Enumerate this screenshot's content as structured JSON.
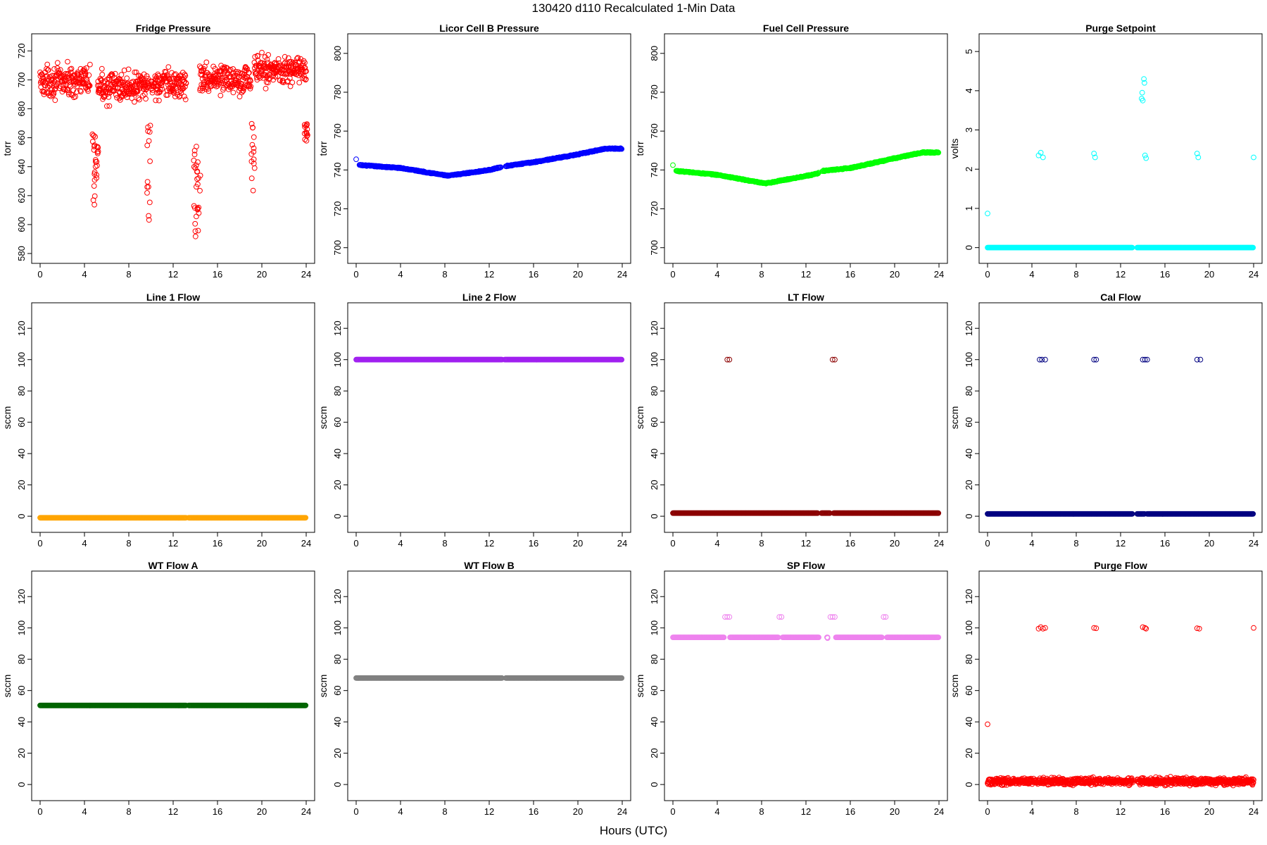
{
  "figure": {
    "title": "130420   d110   Recalculated 1-Min Data",
    "xlabel": "Hours (UTC)"
  },
  "chart_data": [
    {
      "type": "scatter",
      "title": "Fridge Pressure",
      "ylabel": "torr",
      "color": "#ff0000",
      "xlim": [
        0,
        24
      ],
      "ylim": [
        580,
        725
      ],
      "xticks": [
        "0",
        "4",
        "8",
        "12",
        "16",
        "20",
        "24"
      ],
      "yticks": [
        "580",
        "600",
        "620",
        "640",
        "660",
        "680",
        "700",
        "720"
      ],
      "series": [
        {
          "name": "main",
          "x_range": [
            0,
            24
          ],
          "y": 699,
          "spread": 7,
          "gaps": [
            [
              13.2,
              14.3
            ]
          ],
          "segment_levels": [
            [
              0,
              4.5,
              699
            ],
            [
              5.2,
              9.8,
              695
            ],
            [
              10,
              13.2,
              697
            ],
            [
              14.4,
              19,
              701
            ],
            [
              19.3,
              24,
              707
            ]
          ]
        },
        {
          "name": "dips",
          "clusters": [
            [
              4.8,
              612,
              663
            ],
            [
              5.1,
              630,
              663
            ],
            [
              9.8,
              603,
              671
            ],
            [
              14,
              585,
              656
            ],
            [
              14.3,
              595,
              645
            ],
            [
              19.2,
              620,
              670
            ],
            [
              24,
              657,
              670
            ]
          ]
        }
      ]
    },
    {
      "type": "scatter",
      "title": "Licor Cell B Pressure",
      "ylabel": "torr",
      "color": "#0000ff",
      "xlim": [
        0,
        24
      ],
      "ylim": [
        697,
        805
      ],
      "xticks": [
        "0",
        "4",
        "8",
        "12",
        "16",
        "20",
        "24"
      ],
      "yticks": [
        "700",
        "720",
        "740",
        "760",
        "780",
        "800"
      ],
      "series": [
        {
          "name": "main",
          "points": [
            [
              0,
              745.5
            ]
          ],
          "line": [
            [
              0.3,
              742.5
            ],
            [
              4,
              741
            ],
            [
              8.3,
              737
            ],
            [
              12,
              740
            ],
            [
              13.5,
              742
            ],
            [
              16,
              744
            ],
            [
              20,
              748
            ],
            [
              22.5,
              751
            ],
            [
              24,
              751
            ]
          ],
          "gaps": [
            [
              13.1,
              13.5
            ]
          ]
        }
      ]
    },
    {
      "type": "scatter",
      "title": "Fuel Cell Pressure",
      "ylabel": "torr",
      "color": "#00ff00",
      "xlim": [
        0,
        24
      ],
      "ylim": [
        697,
        805
      ],
      "xticks": [
        "0",
        "4",
        "8",
        "12",
        "16",
        "20",
        "24"
      ],
      "yticks": [
        "700",
        "720",
        "740",
        "760",
        "780",
        "800"
      ],
      "series": [
        {
          "name": "main",
          "points": [
            [
              0,
              742.5
            ]
          ],
          "line": [
            [
              0.3,
              739.5
            ],
            [
              4,
              737.5
            ],
            [
              8.3,
              733
            ],
            [
              13,
              738
            ],
            [
              13.5,
              739.5
            ],
            [
              16,
              741
            ],
            [
              20,
              746
            ],
            [
              22.5,
              749
            ],
            [
              24,
              749
            ]
          ],
          "gaps": [
            [
              13.2,
              13.5
            ]
          ]
        }
      ]
    },
    {
      "type": "scatter",
      "title": "Purge Setpoint",
      "ylabel": "volts",
      "color": "#00ffff",
      "xlim": [
        0,
        24
      ],
      "ylim": [
        -0.15,
        5.2
      ],
      "xticks": [
        "0",
        "4",
        "8",
        "12",
        "16",
        "20",
        "24"
      ],
      "yticks": [
        "0",
        "1",
        "2",
        "3",
        "4",
        "5"
      ],
      "series": [
        {
          "name": "baseline",
          "x_range": [
            0,
            24
          ],
          "y": 0,
          "gaps": [
            [
              13.1,
              13.5
            ]
          ]
        },
        {
          "name": "spikes",
          "points": [
            [
              0,
              0.87
            ],
            [
              4.6,
              2.35
            ],
            [
              4.8,
              2.42
            ],
            [
              5.0,
              2.3
            ],
            [
              9.6,
              2.4
            ],
            [
              9.7,
              2.3
            ],
            [
              13.9,
              3.8
            ],
            [
              13.95,
              3.95
            ],
            [
              14.0,
              3.75
            ],
            [
              14.1,
              4.3
            ],
            [
              14.15,
              4.2
            ],
            [
              14.2,
              2.35
            ],
            [
              14.3,
              2.28
            ],
            [
              18.9,
              2.4
            ],
            [
              19.0,
              2.3
            ],
            [
              24,
              2.3
            ]
          ]
        }
      ]
    },
    {
      "type": "scatter",
      "title": "Line 1 Flow",
      "ylabel": "sccm",
      "color": "#ffa500",
      "xlim": [
        0,
        24
      ],
      "ylim": [
        -4,
        130
      ],
      "xticks": [
        "0",
        "4",
        "8",
        "12",
        "16",
        "20",
        "24"
      ],
      "yticks": [
        "0",
        "20",
        "40",
        "60",
        "80",
        "100",
        "120"
      ],
      "series": [
        {
          "name": "main",
          "x_range": [
            0,
            24
          ],
          "y": -1,
          "gaps": [
            [
              13.2,
              13.4
            ]
          ]
        }
      ]
    },
    {
      "type": "scatter",
      "title": "Line 2 Flow",
      "ylabel": "sccm",
      "color": "#a020f0",
      "xlim": [
        0,
        24
      ],
      "ylim": [
        -4,
        130
      ],
      "xticks": [
        "0",
        "4",
        "8",
        "12",
        "16",
        "20",
        "24"
      ],
      "yticks": [
        "0",
        "20",
        "40",
        "60",
        "80",
        "100",
        "120"
      ],
      "series": [
        {
          "name": "main",
          "x_range": [
            0,
            24
          ],
          "y": 100,
          "gaps": [
            [
              13.2,
              13.4
            ]
          ]
        }
      ]
    },
    {
      "type": "scatter",
      "title": "LT Flow",
      "ylabel": "sccm",
      "color": "#8b0000",
      "xlim": [
        0,
        24
      ],
      "ylim": [
        -4,
        130
      ],
      "xticks": [
        "0",
        "4",
        "8",
        "12",
        "16",
        "20",
        "24"
      ],
      "yticks": [
        "0",
        "20",
        "40",
        "60",
        "80",
        "100",
        "120"
      ],
      "series": [
        {
          "name": "baseline",
          "x_range": [
            0,
            24
          ],
          "y": 2,
          "gaps": [
            [
              13.1,
              13.4
            ],
            [
              14.2,
              14.5
            ]
          ]
        },
        {
          "name": "spikes",
          "points": [
            [
              4.9,
              100
            ],
            [
              5.1,
              100
            ],
            [
              14.4,
              100
            ],
            [
              14.6,
              100
            ]
          ]
        }
      ]
    },
    {
      "type": "scatter",
      "title": "Cal Flow",
      "ylabel": "sccm",
      "color": "#000080",
      "xlim": [
        0,
        24
      ],
      "ylim": [
        -4,
        130
      ],
      "xticks": [
        "0",
        "4",
        "8",
        "12",
        "16",
        "20",
        "24"
      ],
      "yticks": [
        "0",
        "20",
        "40",
        "60",
        "80",
        "100",
        "120"
      ],
      "series": [
        {
          "name": "baseline",
          "x_range": [
            0,
            24
          ],
          "y": 1.5,
          "gaps": [
            [
              13.1,
              13.5
            ],
            [
              14.2,
              14.4
            ]
          ]
        },
        {
          "name": "spikes",
          "points": [
            [
              4.7,
              100
            ],
            [
              4.9,
              100
            ],
            [
              5.2,
              100
            ],
            [
              9.6,
              100
            ],
            [
              9.8,
              100
            ],
            [
              14.0,
              100
            ],
            [
              14.2,
              100
            ],
            [
              14.4,
              100
            ],
            [
              18.9,
              100
            ],
            [
              19.2,
              100
            ]
          ]
        }
      ]
    },
    {
      "type": "scatter",
      "title": "WT Flow A",
      "ylabel": "sccm",
      "color": "#006400",
      "xlim": [
        0,
        24
      ],
      "ylim": [
        -4,
        130
      ],
      "xticks": [
        "0",
        "4",
        "8",
        "12",
        "16",
        "20",
        "24"
      ],
      "yticks": [
        "0",
        "20",
        "40",
        "60",
        "80",
        "100",
        "120"
      ],
      "series": [
        {
          "name": "main",
          "x_range": [
            0,
            24
          ],
          "y": 50.5,
          "gaps": [
            [
              13.2,
              13.4
            ]
          ]
        }
      ]
    },
    {
      "type": "scatter",
      "title": "WT Flow B",
      "ylabel": "sccm",
      "color": "#808080",
      "xlim": [
        0,
        24
      ],
      "ylim": [
        -4,
        130
      ],
      "xticks": [
        "0",
        "4",
        "8",
        "12",
        "16",
        "20",
        "24"
      ],
      "yticks": [
        "0",
        "20",
        "40",
        "60",
        "80",
        "100",
        "120"
      ],
      "series": [
        {
          "name": "main",
          "x_range": [
            0,
            24
          ],
          "y": 68,
          "gaps": [
            [
              13.2,
              13.5
            ]
          ]
        }
      ]
    },
    {
      "type": "scatter",
      "title": "SP Flow",
      "ylabel": "sccm",
      "color": "#ee82ee",
      "xlim": [
        0,
        24
      ],
      "ylim": [
        -4,
        130
      ],
      "xticks": [
        "0",
        "4",
        "8",
        "12",
        "16",
        "20",
        "24"
      ],
      "yticks": [
        "0",
        "20",
        "40",
        "60",
        "80",
        "100",
        "120"
      ],
      "series": [
        {
          "name": "baseline",
          "x_range": [
            0,
            24
          ],
          "y": 94,
          "gaps": [
            [
              4.6,
              5.1
            ],
            [
              9.5,
              9.9
            ],
            [
              13.2,
              13.9
            ],
            [
              14.0,
              14.7
            ],
            [
              18.9,
              19.3
            ]
          ]
        },
        {
          "name": "spikes",
          "points": [
            [
              4.7,
              107
            ],
            [
              4.9,
              107
            ],
            [
              5.1,
              107
            ],
            [
              9.6,
              107
            ],
            [
              9.8,
              107
            ],
            [
              14.2,
              107
            ],
            [
              14.4,
              107
            ],
            [
              14.6,
              107
            ],
            [
              19.0,
              107
            ],
            [
              19.2,
              107
            ],
            [
              13.95,
              93.5
            ]
          ]
        }
      ]
    },
    {
      "type": "scatter",
      "title": "Purge Flow",
      "ylabel": "sccm",
      "color": "#ff0000",
      "xlim": [
        0,
        24
      ],
      "ylim": [
        -4,
        130
      ],
      "xticks": [
        "0",
        "4",
        "8",
        "12",
        "16",
        "20",
        "24"
      ],
      "yticks": [
        "0",
        "20",
        "40",
        "60",
        "80",
        "100",
        "120"
      ],
      "series": [
        {
          "name": "baseline",
          "x_range": [
            0,
            24
          ],
          "y": 2,
          "spread": 1.5,
          "gaps": [
            [
              13.1,
              13.5
            ]
          ]
        },
        {
          "name": "spikes",
          "points": [
            [
              0,
              38.5
            ],
            [
              4.6,
              99.5
            ],
            [
              4.8,
              100.5
            ],
            [
              5.0,
              99.5
            ],
            [
              5.2,
              100
            ],
            [
              9.6,
              100
            ],
            [
              9.8,
              99.8
            ],
            [
              14.0,
              100.5
            ],
            [
              14.2,
              100
            ],
            [
              14.3,
              99.5
            ],
            [
              18.9,
              99.8
            ],
            [
              19.1,
              99.5
            ],
            [
              24,
              100
            ]
          ]
        }
      ]
    }
  ]
}
